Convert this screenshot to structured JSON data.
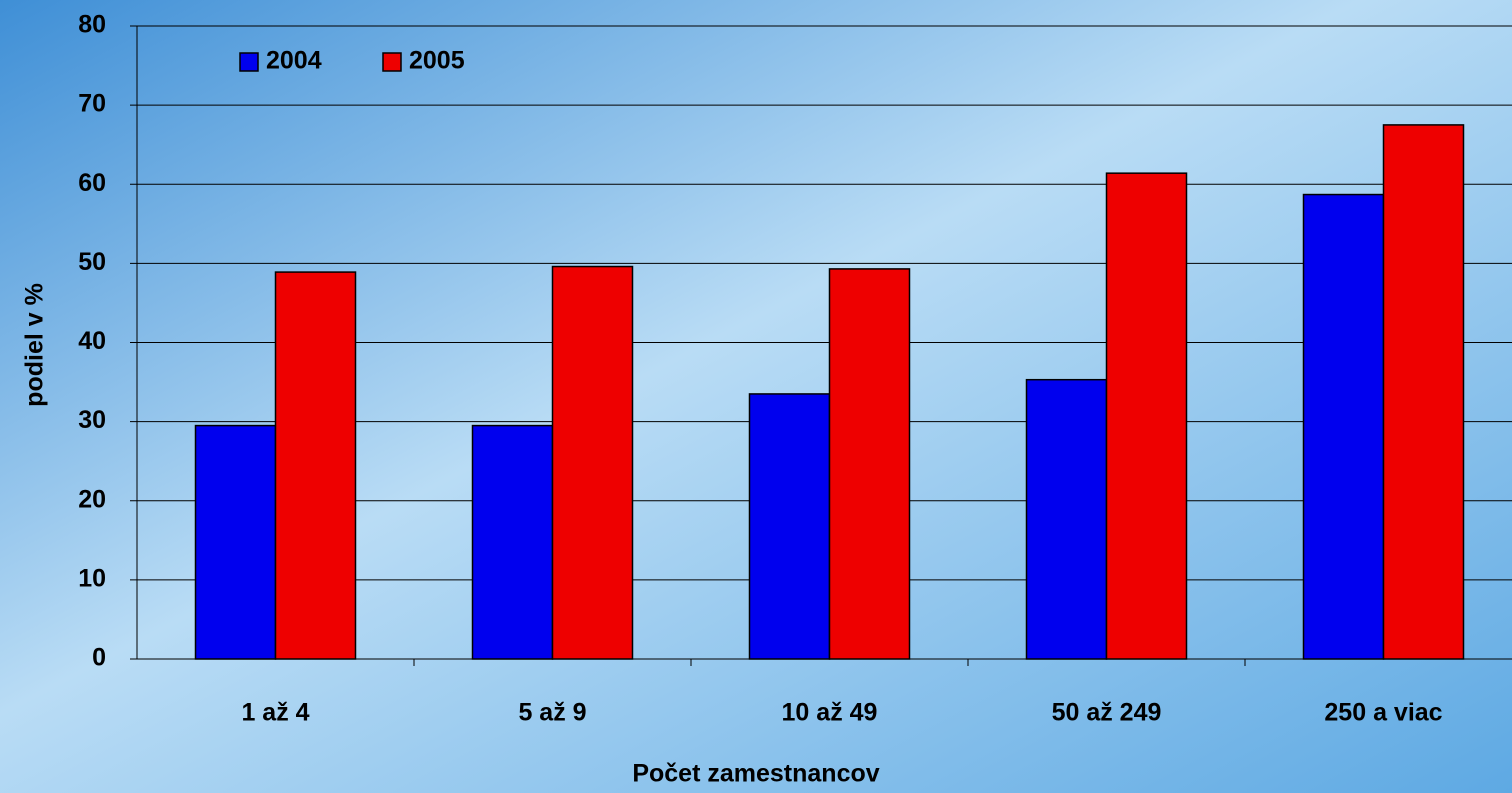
{
  "chart_data": {
    "type": "bar",
    "x_label": "Počet zamestnancov",
    "y_label": "podiel v %",
    "categories": [
      "1 až 4",
      "5 až 9",
      "10 až 49",
      "50 až 249",
      "250 a viac"
    ],
    "series": [
      {
        "name": "2004",
        "color": "#0000ee",
        "values": [
          29.5,
          29.5,
          33.5,
          35.3,
          58.7
        ]
      },
      {
        "name": "2005",
        "color": "#ee0000",
        "values": [
          48.9,
          49.6,
          49.3,
          61.4,
          67.5
        ]
      }
    ],
    "ylim": [
      0,
      80
    ],
    "yticks": [
      0,
      10,
      20,
      30,
      40,
      50,
      60,
      70,
      80
    ],
    "grid": true,
    "legend": "top-left"
  }
}
